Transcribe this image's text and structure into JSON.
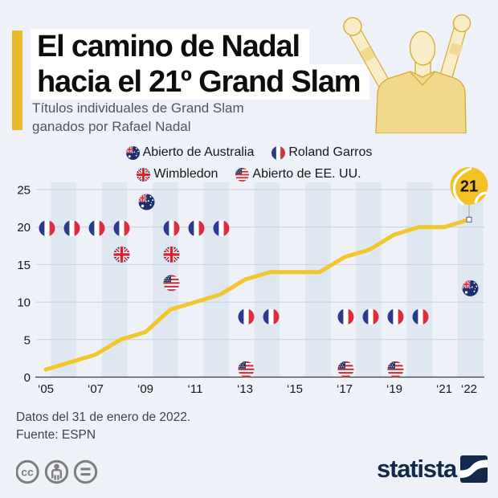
{
  "header": {
    "title_line1": "El camino de Nadal",
    "title_line2": "hacia el 21º Grand Slam",
    "subtitle_line1": "Títulos individuales de Grand Slam",
    "subtitle_line2": "ganados por Rafael Nadal"
  },
  "legend": {
    "rows": [
      [
        {
          "flag": "au",
          "label": "Abierto de Australia"
        },
        {
          "flag": "fr",
          "label": "Roland Garros"
        }
      ],
      [
        {
          "flag": "uk",
          "label": "Wimbledon"
        },
        {
          "flag": "us",
          "label": "Abierto de EE. UU."
        }
      ]
    ]
  },
  "chart_data": {
    "type": "line",
    "title": "El camino de Nadal hacia el 21º Grand Slam",
    "xlabel": "",
    "ylabel": "",
    "x": [
      2005,
      2006,
      2007,
      2008,
      2009,
      2010,
      2011,
      2012,
      2013,
      2014,
      2015,
      2016,
      2017,
      2018,
      2019,
      2020,
      2021,
      2022
    ],
    "series": [
      {
        "name": "Títulos de Grand Slam acumulados",
        "values": [
          1,
          2,
          3,
          5,
          6,
          9,
          10,
          11,
          13,
          14,
          14,
          14,
          16,
          17,
          19,
          20,
          20,
          21
        ]
      }
    ],
    "ylim": [
      0,
      25
    ],
    "y_ticks": [
      0,
      5,
      10,
      15,
      20,
      25
    ],
    "x_tick_years": [
      2005,
      2007,
      2009,
      2011,
      2013,
      2015,
      2017,
      2019,
      2021,
      2022
    ],
    "x_tick_labels": [
      "‘05",
      "‘07",
      "‘09",
      "‘11",
      "‘13",
      "‘15",
      "‘17",
      "‘19",
      "‘21",
      "‘22"
    ],
    "end_label": "21",
    "grid": true,
    "legend_position": "top",
    "flag_markers": [
      {
        "year": 2005,
        "flag": "fr",
        "value": 20
      },
      {
        "year": 2006,
        "flag": "fr",
        "value": 20
      },
      {
        "year": 2007,
        "flag": "fr",
        "value": 20
      },
      {
        "year": 2008,
        "flag": "fr",
        "value": 20
      },
      {
        "year": 2010,
        "flag": "fr",
        "value": 20
      },
      {
        "year": 2011,
        "flag": "fr",
        "value": 20
      },
      {
        "year": 2012,
        "flag": "fr",
        "value": 20
      },
      {
        "year": 2008,
        "flag": "uk",
        "value": 16.5
      },
      {
        "year": 2010,
        "flag": "uk",
        "value": 16.5
      },
      {
        "year": 2010,
        "flag": "us",
        "value": 12.7
      },
      {
        "year": 2009,
        "flag": "au",
        "value": 23.5
      },
      {
        "year": 2013,
        "flag": "fr",
        "value": 8.2
      },
      {
        "year": 2014,
        "flag": "fr",
        "value": 8.2
      },
      {
        "year": 2017,
        "flag": "fr",
        "value": 8.2
      },
      {
        "year": 2018,
        "flag": "fr",
        "value": 8.2
      },
      {
        "year": 2019,
        "flag": "fr",
        "value": 8.2
      },
      {
        "year": 2020,
        "flag": "fr",
        "value": 8.2
      },
      {
        "year": 2013,
        "flag": "us",
        "value": 1.2
      },
      {
        "year": 2017,
        "flag": "us",
        "value": 1.2
      },
      {
        "year": 2019,
        "flag": "us",
        "value": 1.2
      },
      {
        "year": 2022,
        "flag": "au",
        "value": 12.0
      }
    ]
  },
  "colors": {
    "accent_yellow": "#E9BA2E",
    "line_yellow": "#F2C72B",
    "ball_yellow": "#F2C126",
    "band_blue": "#DFE7F1",
    "background": "#EEF1F7",
    "brand_navy": "#13294B"
  },
  "footer": {
    "note": "Datos del 31 de enero de 2022.",
    "source": "Fuente: ESPN",
    "brand": "statista"
  }
}
